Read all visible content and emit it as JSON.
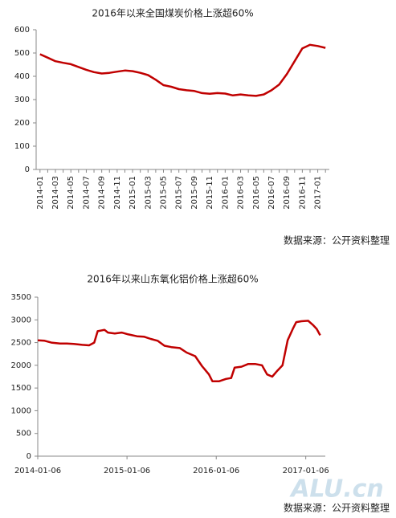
{
  "chart_data": [
    {
      "type": "line",
      "title": "2016年以来全国煤炭价格上涨超60%",
      "categories": [
        "2014-01",
        null,
        "2014-03",
        null,
        "2014-05",
        null,
        "2014-07",
        null,
        "2014-09",
        null,
        "2014-11",
        null,
        "2015-01",
        null,
        "2015-03",
        null,
        "2015-05",
        null,
        "2015-07",
        null,
        "2015-09",
        null,
        "2015-11",
        null,
        "2016-01",
        null,
        "2016-03",
        null,
        "2016-05",
        null,
        "2016-07",
        null,
        "2016-09",
        null,
        "2016-11",
        null,
        "2017-01",
        null
      ],
      "values": [
        495,
        480,
        465,
        458,
        452,
        440,
        428,
        418,
        412,
        415,
        420,
        425,
        422,
        415,
        405,
        385,
        362,
        355,
        345,
        340,
        337,
        328,
        325,
        328,
        326,
        318,
        322,
        318,
        316,
        322,
        340,
        365,
        410,
        465,
        520,
        535,
        530,
        522
      ],
      "color": "#c00000",
      "ylim": [
        0,
        600
      ],
      "yticks": [
        0,
        100,
        200,
        300,
        400,
        500,
        600
      ],
      "grid": false,
      "source": "数据来源：公开资料整理"
    },
    {
      "type": "line",
      "title": "2016年以来山东氧化铝价格上涨超60%",
      "x": [
        "2014-01-06",
        "2014-02-03",
        "2014-03-03",
        "2014-04-07",
        "2014-05-05",
        "2014-06-02",
        "2014-07-07",
        "2014-08-04",
        "2014-08-25",
        "2014-09-08",
        "2014-10-06",
        "2014-10-20",
        "2014-11-17",
        "2014-12-15",
        "2015-01-12",
        "2015-02-16",
        "2015-03-16",
        "2015-04-13",
        "2015-05-11",
        "2015-06-08",
        "2015-07-06",
        "2015-08-10",
        "2015-09-07",
        "2015-10-12",
        "2015-11-09",
        "2015-12-07",
        "2015-12-21",
        "2016-01-18",
        "2016-02-15",
        "2016-03-07",
        "2016-03-21",
        "2016-04-18",
        "2016-05-16",
        "2016-06-13",
        "2016-07-11",
        "2016-08-01",
        "2016-08-22",
        "2016-09-12",
        "2016-10-03",
        "2016-10-24",
        "2016-11-14",
        "2016-11-28",
        "2016-12-19",
        "2017-01-16",
        "2017-02-06",
        "2017-02-20",
        "2017-03-06"
      ],
      "values": [
        2550,
        2540,
        2500,
        2480,
        2480,
        2470,
        2450,
        2440,
        2500,
        2750,
        2780,
        2720,
        2700,
        2720,
        2680,
        2640,
        2630,
        2580,
        2540,
        2430,
        2400,
        2380,
        2280,
        2200,
        1980,
        1800,
        1650,
        1650,
        1700,
        1720,
        1950,
        1970,
        2030,
        2030,
        2000,
        1800,
        1750,
        1880,
        2000,
        2550,
        2800,
        2950,
        2970,
        2980,
        2880,
        2800,
        2660
      ],
      "color": "#c00000",
      "xlim": [
        "2014-01-06",
        "2017-03-27"
      ],
      "xticks": [
        "2014-01-06",
        "2015-01-06",
        "2016-01-06",
        "2017-01-06"
      ],
      "ylim": [
        0,
        3500
      ],
      "yticks": [
        0,
        500,
        1000,
        1500,
        2000,
        2500,
        3000,
        3500
      ],
      "grid": false,
      "watermark": "ALU.cn",
      "source": "数据来源：公开资料整理"
    }
  ]
}
